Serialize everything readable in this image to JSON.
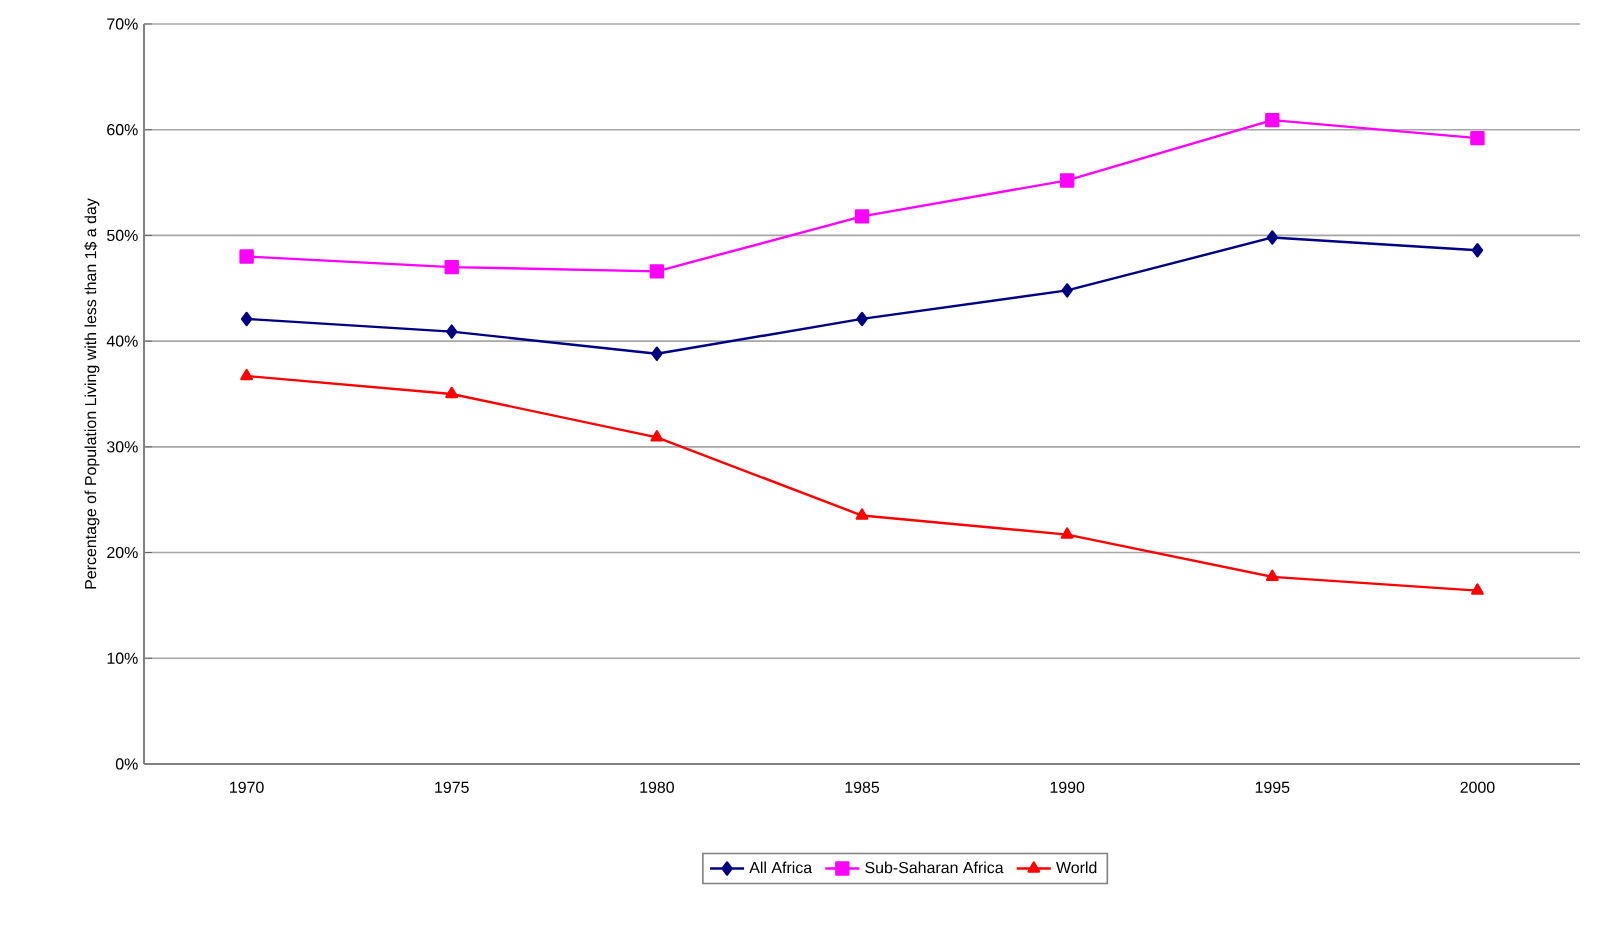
{
  "chart_data": {
    "type": "line",
    "ylabel": "Percentage of Population Living with less than 1$ a day",
    "categories": [
      "1970",
      "1975",
      "1980",
      "1985",
      "1990",
      "1995",
      "2000"
    ],
    "series": [
      {
        "name": "All Africa",
        "color": "#000080",
        "marker": "diamond",
        "values": [
          42.1,
          40.9,
          38.8,
          42.1,
          44.8,
          49.8,
          48.6
        ]
      },
      {
        "name": "Sub-Saharan Africa",
        "color": "#ff00ff",
        "marker": "square",
        "values": [
          48.0,
          47.0,
          46.6,
          51.8,
          55.2,
          60.9,
          59.2
        ]
      },
      {
        "name": "World",
        "color": "#ff0000",
        "marker": "triangle",
        "values": [
          36.7,
          35.0,
          30.9,
          23.5,
          21.7,
          17.7,
          16.4
        ]
      }
    ],
    "ylim": [
      0,
      70
    ],
    "yticks": [
      {
        "value": 0,
        "label": "0%"
      },
      {
        "value": 10,
        "label": "10%"
      },
      {
        "value": 20,
        "label": "20%"
      },
      {
        "value": 30,
        "label": "30%"
      },
      {
        "value": 40,
        "label": "40%"
      },
      {
        "value": 50,
        "label": "50%"
      },
      {
        "value": 60,
        "label": "60%"
      },
      {
        "value": 70,
        "label": "70%"
      }
    ],
    "grid": "y",
    "legend": "bottom",
    "line_style": "solid"
  }
}
